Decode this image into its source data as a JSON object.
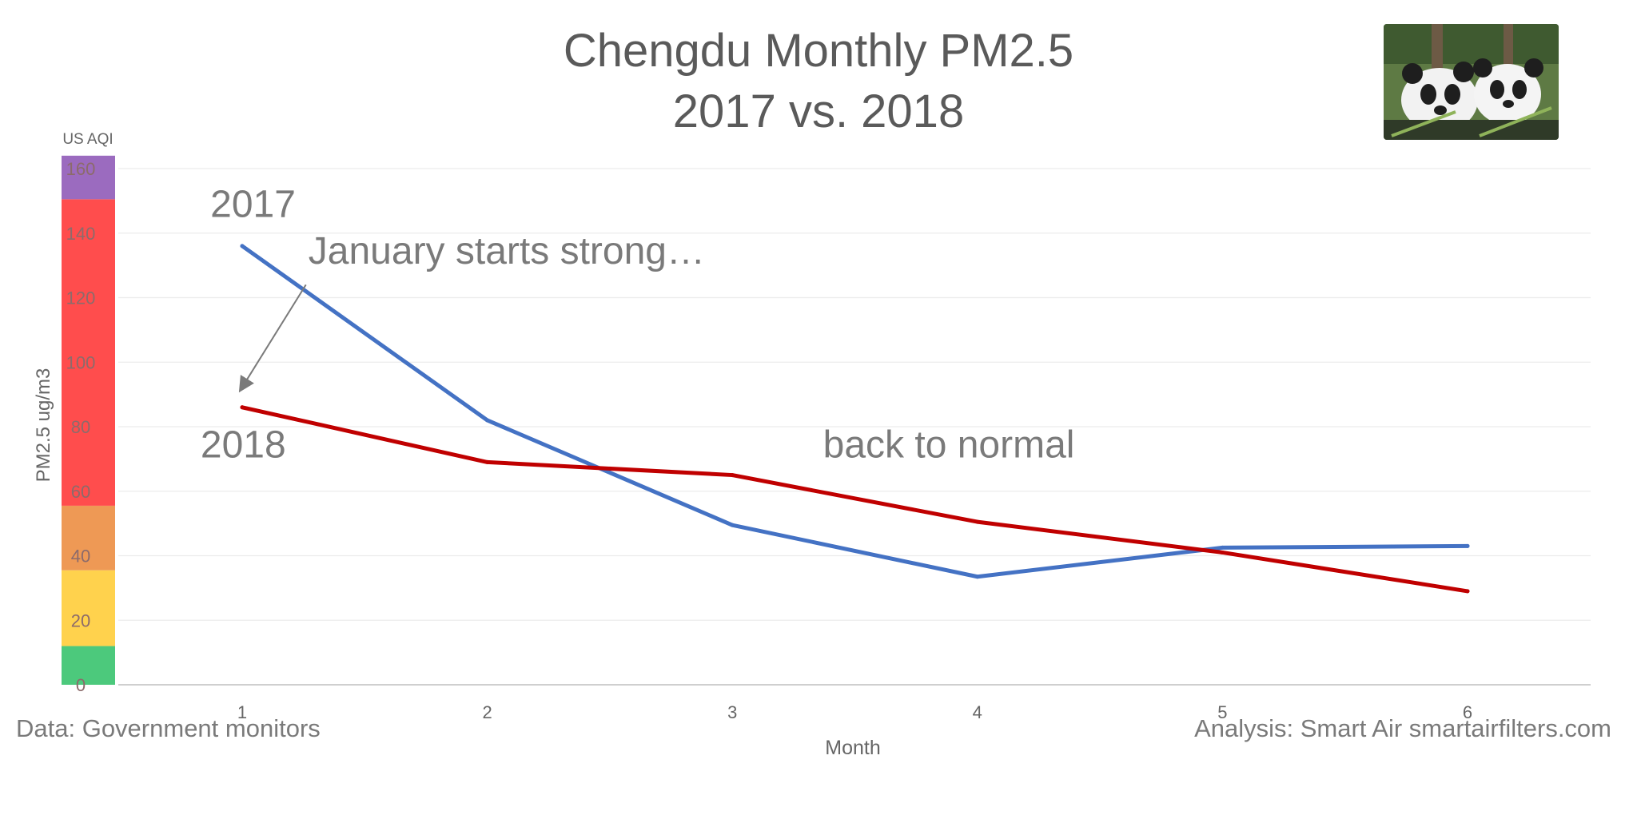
{
  "chart_data": {
    "type": "line",
    "title": "Chengdu Monthly PM2.5",
    "subtitle": "2017 vs. 2018",
    "xlabel": "Month",
    "ylabel": "PM2.5 ug/m3",
    "x": [
      1,
      2,
      3,
      4,
      5,
      6
    ],
    "ylim": [
      0,
      160
    ],
    "yticks": [
      0,
      20,
      40,
      60,
      80,
      100,
      120,
      140,
      160
    ],
    "grid": true,
    "series": [
      {
        "name": "2017",
        "color": "#4472c4",
        "values": [
          136,
          82,
          49.5,
          33.5,
          42.5,
          43
        ]
      },
      {
        "name": "2018",
        "color": "#c00000",
        "values": [
          86,
          69,
          65,
          50.5,
          41,
          29
        ]
      }
    ],
    "aqi_scale": {
      "label": "US AQI",
      "bands": [
        {
          "from": 0,
          "to": 12,
          "color": "#4cc97c"
        },
        {
          "from": 12,
          "to": 35.5,
          "color": "#ffd24d"
        },
        {
          "from": 35.5,
          "to": 55.5,
          "color": "#ee9955"
        },
        {
          "from": 55.5,
          "to": 150.5,
          "color": "#ff4d4d"
        },
        {
          "from": 150.5,
          "to": 164,
          "color": "#9b6bbf"
        }
      ]
    },
    "annotations": [
      {
        "text": "2017",
        "x": 0.87,
        "y": 145
      },
      {
        "text": "2018",
        "x": 0.83,
        "y": 70.5
      },
      {
        "text": "January starts strong…",
        "x": 1.27,
        "y": 130.5
      },
      {
        "text": "back to normal",
        "x": 3.37,
        "y": 70.5
      }
    ],
    "arrow": {
      "from": [
        1.26,
        124
      ],
      "to": [
        0.99,
        91
      ]
    }
  },
  "footer": {
    "data_source": "Data: Government monitors",
    "analysis": "Analysis: Smart Air smartairfilters.com"
  },
  "image": {
    "description_icon": "panda-photo-icon"
  }
}
